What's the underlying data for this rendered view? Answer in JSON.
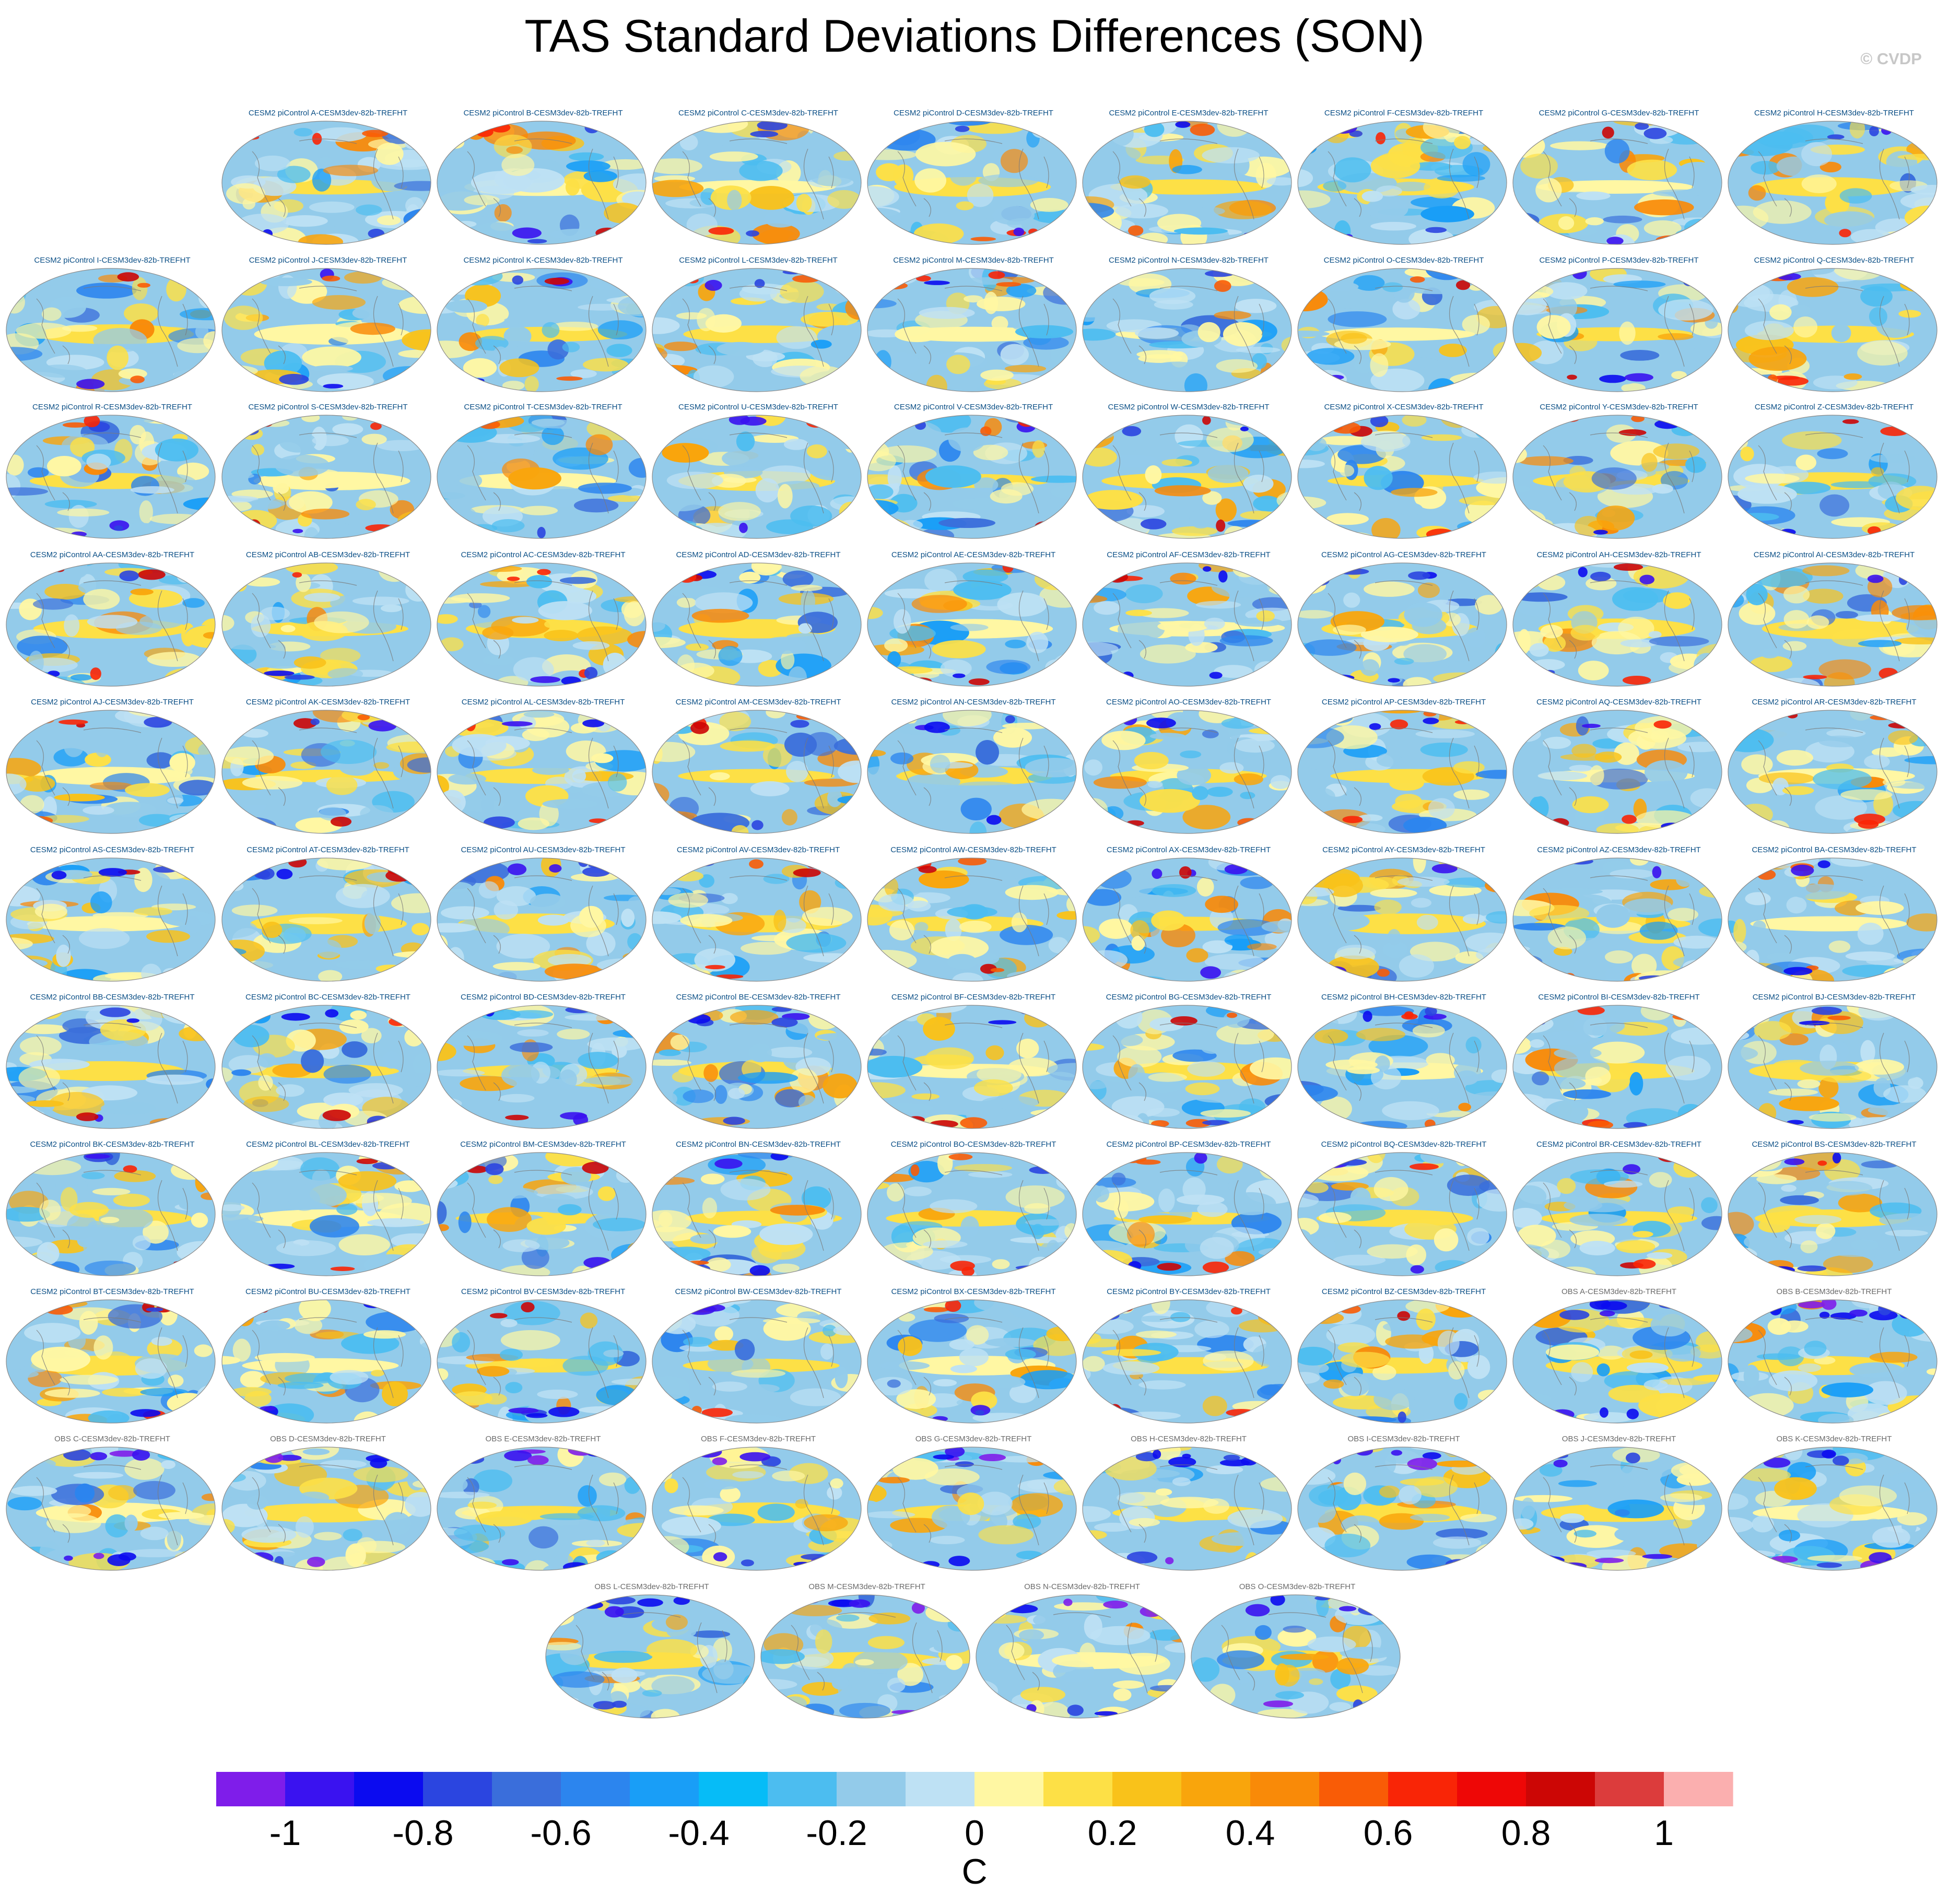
{
  "title": "TAS Standard Deviations Differences (SON)",
  "credit": "© CVDP",
  "colorbar": {
    "label": "C",
    "tick_labels": [
      "-1",
      "-0.8",
      "-0.6",
      "-0.4",
      "-0.2",
      "0",
      "0.2",
      "0.4",
      "0.6",
      "0.8",
      "1"
    ],
    "tick_values": [
      -1,
      -0.8,
      -0.6,
      -0.4,
      -0.2,
      0,
      0.2,
      0.4,
      0.6,
      0.8,
      1
    ],
    "colors": [
      "#7f1dea",
      "#3a12f0",
      "#0b0bf0",
      "#2b45e0",
      "#3a6edb",
      "#2c85ee",
      "#199ef7",
      "#06bcf7",
      "#4cbdf0",
      "#93cbea",
      "#bee1f4",
      "#fff7a3",
      "#fde046",
      "#f9c21a",
      "#f9a50c",
      "#f98a08",
      "#f95c06",
      "#f92506",
      "#ee0706",
      "#cc0605",
      "#dc3c3c",
      "#fbafaf"
    ],
    "range": [
      -1.1,
      1.1
    ]
  },
  "chart_data": {
    "type": "heatmap",
    "title": "TAS Standard Deviations Differences (SON)",
    "units": "C",
    "panels": [
      "CESM2 piControl A-CESM3dev-82b-TREFHT",
      "CESM2 piControl B-CESM3dev-82b-TREFHT",
      "CESM2 piControl C-CESM3dev-82b-TREFHT",
      "CESM2 piControl D-CESM3dev-82b-TREFHT",
      "CESM2 piControl E-CESM3dev-82b-TREFHT",
      "CESM2 piControl F-CESM3dev-82b-TREFHT",
      "CESM2 piControl G-CESM3dev-82b-TREFHT",
      "CESM2 piControl H-CESM3dev-82b-TREFHT",
      "CESM2 piControl I-CESM3dev-82b-TREFHT",
      "CESM2 piControl J-CESM3dev-82b-TREFHT",
      "CESM2 piControl K-CESM3dev-82b-TREFHT",
      "CESM2 piControl L-CESM3dev-82b-TREFHT",
      "CESM2 piControl M-CESM3dev-82b-TREFHT",
      "CESM2 piControl N-CESM3dev-82b-TREFHT",
      "CESM2 piControl O-CESM3dev-82b-TREFHT",
      "CESM2 piControl P-CESM3dev-82b-TREFHT",
      "CESM2 piControl Q-CESM3dev-82b-TREFHT",
      "CESM2 piControl R-CESM3dev-82b-TREFHT",
      "CESM2 piControl S-CESM3dev-82b-TREFHT",
      "CESM2 piControl T-CESM3dev-82b-TREFHT",
      "CESM2 piControl U-CESM3dev-82b-TREFHT",
      "CESM2 piControl V-CESM3dev-82b-TREFHT",
      "CESM2 piControl W-CESM3dev-82b-TREFHT",
      "CESM2 piControl X-CESM3dev-82b-TREFHT",
      "CESM2 piControl Y-CESM3dev-82b-TREFHT",
      "CESM2 piControl Z-CESM3dev-82b-TREFHT",
      "CESM2 piControl AA-CESM3dev-82b-TREFHT",
      "CESM2 piControl AB-CESM3dev-82b-TREFHT",
      "CESM2 piControl AC-CESM3dev-82b-TREFHT",
      "CESM2 piControl AD-CESM3dev-82b-TREFHT",
      "CESM2 piControl AE-CESM3dev-82b-TREFHT",
      "CESM2 piControl AF-CESM3dev-82b-TREFHT",
      "CESM2 piControl AG-CESM3dev-82b-TREFHT",
      "CESM2 piControl AH-CESM3dev-82b-TREFHT",
      "CESM2 piControl AI-CESM3dev-82b-TREFHT",
      "CESM2 piControl AJ-CESM3dev-82b-TREFHT",
      "CESM2 piControl AK-CESM3dev-82b-TREFHT",
      "CESM2 piControl AL-CESM3dev-82b-TREFHT",
      "CESM2 piControl AM-CESM3dev-82b-TREFHT",
      "CESM2 piControl AN-CESM3dev-82b-TREFHT",
      "CESM2 piControl AO-CESM3dev-82b-TREFHT",
      "CESM2 piControl AP-CESM3dev-82b-TREFHT",
      "CESM2 piControl AQ-CESM3dev-82b-TREFHT",
      "CESM2 piControl AR-CESM3dev-82b-TREFHT",
      "CESM2 piControl AS-CESM3dev-82b-TREFHT",
      "CESM2 piControl AT-CESM3dev-82b-TREFHT",
      "CESM2 piControl AU-CESM3dev-82b-TREFHT",
      "CESM2 piControl AV-CESM3dev-82b-TREFHT",
      "CESM2 piControl AW-CESM3dev-82b-TREFHT",
      "CESM2 piControl AX-CESM3dev-82b-TREFHT",
      "CESM2 piControl AY-CESM3dev-82b-TREFHT",
      "CESM2 piControl AZ-CESM3dev-82b-TREFHT",
      "CESM2 piControl BA-CESM3dev-82b-TREFHT",
      "CESM2 piControl BB-CESM3dev-82b-TREFHT",
      "CESM2 piControl BC-CESM3dev-82b-TREFHT",
      "CESM2 piControl BD-CESM3dev-82b-TREFHT",
      "CESM2 piControl BE-CESM3dev-82b-TREFHT",
      "CESM2 piControl BF-CESM3dev-82b-TREFHT",
      "CESM2 piControl BG-CESM3dev-82b-TREFHT",
      "CESM2 piControl BH-CESM3dev-82b-TREFHT",
      "CESM2 piControl BI-CESM3dev-82b-TREFHT",
      "CESM2 piControl BJ-CESM3dev-82b-TREFHT",
      "CESM2 piControl BK-CESM3dev-82b-TREFHT",
      "CESM2 piControl BL-CESM3dev-82b-TREFHT",
      "CESM2 piControl BM-CESM3dev-82b-TREFHT",
      "CESM2 piControl BN-CESM3dev-82b-TREFHT",
      "CESM2 piControl BO-CESM3dev-82b-TREFHT",
      "CESM2 piControl BP-CESM3dev-82b-TREFHT",
      "CESM2 piControl BQ-CESM3dev-82b-TREFHT",
      "CESM2 piControl BR-CESM3dev-82b-TREFHT",
      "CESM2 piControl BS-CESM3dev-82b-TREFHT",
      "CESM2 piControl BT-CESM3dev-82b-TREFHT",
      "CESM2 piControl BU-CESM3dev-82b-TREFHT",
      "CESM2 piControl BV-CESM3dev-82b-TREFHT",
      "CESM2 piControl BW-CESM3dev-82b-TREFHT",
      "CESM2 piControl BX-CESM3dev-82b-TREFHT",
      "CESM2 piControl BY-CESM3dev-82b-TREFHT",
      "CESM2 piControl BZ-CESM3dev-82b-TREFHT",
      "OBS A-CESM3dev-82b-TREFHT",
      "OBS B-CESM3dev-82b-TREFHT",
      "OBS C-CESM3dev-82b-TREFHT",
      "OBS D-CESM3dev-82b-TREFHT",
      "OBS E-CESM3dev-82b-TREFHT",
      "OBS F-CESM3dev-82b-TREFHT",
      "OBS G-CESM3dev-82b-TREFHT",
      "OBS H-CESM3dev-82b-TREFHT",
      "OBS I-CESM3dev-82b-TREFHT",
      "OBS J-CESM3dev-82b-TREFHT",
      "OBS K-CESM3dev-82b-TREFHT",
      "OBS L-CESM3dev-82b-TREFHT",
      "OBS M-CESM3dev-82b-TREFHT",
      "OBS N-CESM3dev-82b-TREFHT",
      "OBS O-CESM3dev-82b-TREFHT"
    ],
    "colorbar_range": [
      -1.1,
      1.1
    ]
  }
}
